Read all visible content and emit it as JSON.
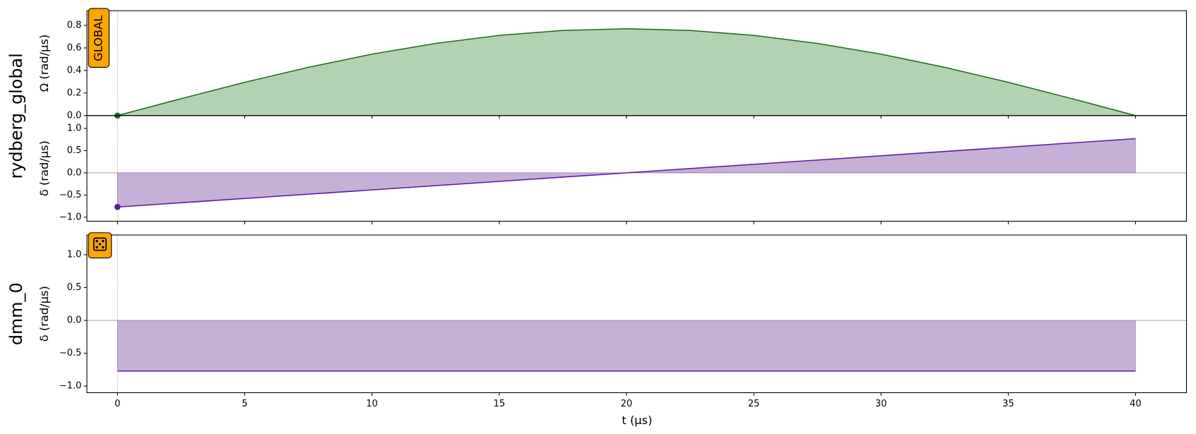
{
  "channels": [
    "rydberg_global",
    "dmm_0"
  ],
  "badge": "GLOBAL",
  "xlabel": "t (μs)",
  "chart_data": [
    {
      "type": "area",
      "channel": 0,
      "ylabel": "Ω (rad/µs)",
      "ylim": [
        0,
        0.93
      ],
      "yticks": [
        {
          "value": 0,
          "label": "0.0"
        },
        0.2,
        0.4,
        0.6,
        0.8
      ],
      "x": [
        0,
        2.5,
        5,
        7.5,
        10,
        12.5,
        15,
        17.5,
        20,
        22.5,
        25,
        27.5,
        30,
        32.5,
        35,
        37.5,
        40
      ],
      "series": [
        {
          "color": "#1b6b1b",
          "fill": "#b2d3b2",
          "values": [
            0,
            0.15,
            0.295,
            0.428,
            0.545,
            0.64,
            0.711,
            0.755,
            0.77,
            0.755,
            0.711,
            0.64,
            0.545,
            0.428,
            0.295,
            0.15,
            0
          ]
        }
      ]
    },
    {
      "type": "area",
      "channel": 0,
      "ylabel": "δ (rad/µs)",
      "ylim": [
        -1.09,
        1.29
      ],
      "yticks": [
        {
          "value": -1,
          "label": "−1.0"
        },
        {
          "value": -0.5,
          "label": "−0.5"
        },
        {
          "value": 0,
          "label": "0.0"
        },
        0.5,
        {
          "value": 1,
          "label": "1.0"
        }
      ],
      "x": [
        0,
        40
      ],
      "series": [
        {
          "color": "#5a189a",
          "fill": "#c7b0d8",
          "values": [
            -0.77,
            0.77
          ]
        }
      ]
    },
    {
      "type": "area",
      "channel": 1,
      "ylabel": "δ (rad/µs)",
      "ylim": [
        -1.1,
        1.3
      ],
      "yticks": [
        {
          "value": -1,
          "label": "−1.0"
        },
        {
          "value": -0.5,
          "label": "−0.5"
        },
        {
          "value": 0,
          "label": "0.0"
        },
        0.5,
        {
          "value": 1,
          "label": "1.0"
        }
      ],
      "xlim": [
        -1.2,
        42
      ],
      "xticks": [
        0,
        5,
        10,
        15,
        20,
        25,
        30,
        35,
        40
      ],
      "x": [
        0,
        40
      ],
      "series": [
        {
          "color": "#5a189a",
          "fill": "#c7b0d8",
          "values": [
            -0.77,
            -0.77
          ]
        }
      ]
    }
  ]
}
